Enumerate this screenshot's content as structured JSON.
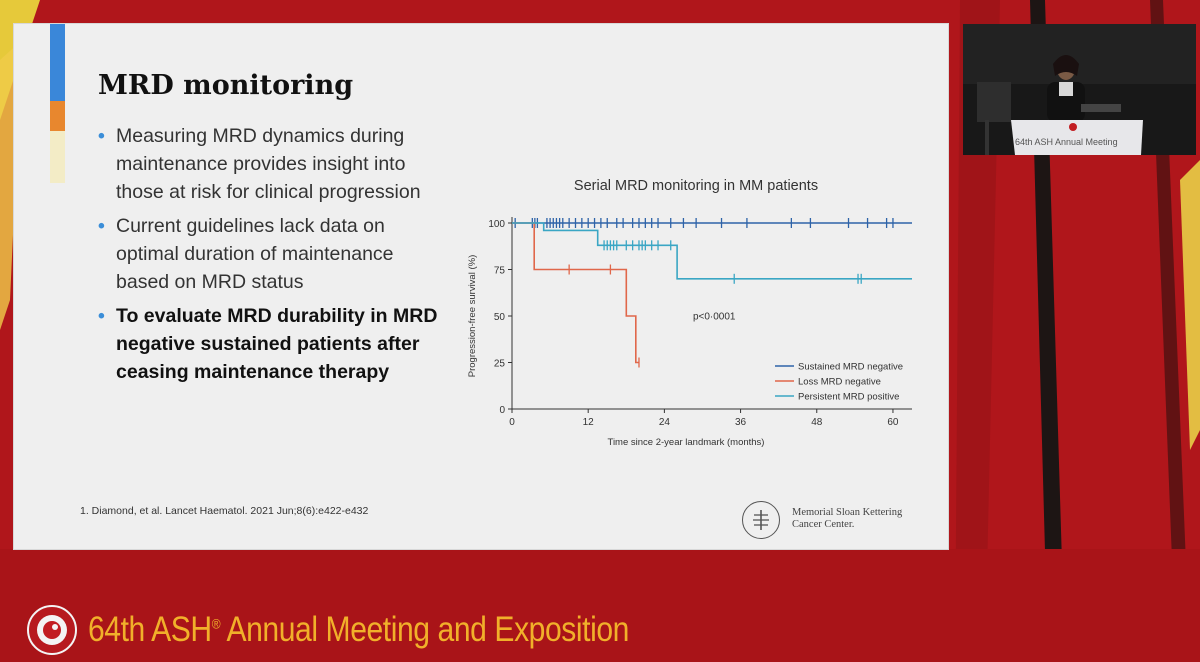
{
  "slide": {
    "title": "MRD monitoring",
    "bullets": [
      {
        "text": "Measuring MRD dynamics during maintenance provides insight into those at risk for clinical progression",
        "bold": false
      },
      {
        "text": "Current guidelines lack data on optimal duration of maintenance based on MRD status",
        "bold": false
      },
      {
        "text": "To evaluate MRD durability in MRD negative sustained patients after ceasing maintenance therapy",
        "bold": true
      }
    ],
    "bullet_glyph": "•",
    "reference": "1.  Diamond, et al.  Lancet Haematol. 2021 Jun;8(6):e422-e432",
    "logo": {
      "line1": "Memorial Sloan Kettering",
      "line2": "Cancer Center."
    }
  },
  "chart_data": {
    "type": "line",
    "subtype": "kaplan-meier",
    "title": "Serial MRD monitoring in MM patients",
    "xlabel": "Time since 2-year landmark (months)",
    "ylabel": "Progression-free survival (%)",
    "xlim": [
      0,
      63
    ],
    "ylim": [
      0,
      100
    ],
    "xticks": [
      0,
      12,
      24,
      36,
      48,
      60
    ],
    "yticks": [
      0,
      25,
      50,
      75,
      100
    ],
    "annotation": "p<0·0001",
    "legend_position": "bottom-right",
    "series": [
      {
        "name": "Sustained MRD negative",
        "color": "#2e63a8",
        "steps": [
          [
            0,
            100
          ],
          [
            63,
            100
          ]
        ],
        "censor": [
          0.5,
          3.2,
          3.6,
          4,
          5.5,
          6,
          6.5,
          7,
          7.5,
          8,
          9,
          10,
          11,
          12,
          13,
          14,
          15,
          16.5,
          17.5,
          19,
          20,
          21,
          22,
          23,
          25,
          27,
          29,
          33,
          37,
          44,
          47,
          53,
          56,
          59,
          60
        ]
      },
      {
        "name": "Loss MRD negative",
        "color": "#e0674a",
        "steps": [
          [
            0,
            100
          ],
          [
            3.5,
            100
          ],
          [
            3.5,
            75
          ],
          [
            18,
            75
          ],
          [
            18,
            50
          ],
          [
            19.5,
            50
          ],
          [
            19.5,
            25
          ],
          [
            20,
            25
          ]
        ],
        "censor": [
          9,
          15.5,
          20
        ]
      },
      {
        "name": "Persistent MRD positive",
        "color": "#3aa6c4",
        "steps": [
          [
            0,
            100
          ],
          [
            5,
            100
          ],
          [
            5,
            96
          ],
          [
            13.5,
            96
          ],
          [
            13.5,
            88
          ],
          [
            26,
            88
          ],
          [
            26,
            70
          ],
          [
            63,
            70
          ]
        ],
        "censor": [
          14.5,
          15,
          15.5,
          16,
          16.5,
          18,
          19,
          20,
          20.5,
          21,
          22,
          23,
          25,
          35,
          54.5,
          55
        ]
      }
    ]
  },
  "banner": {
    "text_main": "64th ASH",
    "text_reg": "®",
    "text_rest": " Annual Meeting and Exposition"
  },
  "speaker_video": {
    "podium_text": "64th ASH Annual Meeting"
  },
  "colors": {
    "background_red": "#b0161b",
    "banner_gold": "#f1b02a",
    "bullet_blue": "#3b8ed8",
    "accent_blue": "#3a87d9",
    "accent_orange": "#e8872e",
    "accent_cream": "#f3ecc6"
  }
}
